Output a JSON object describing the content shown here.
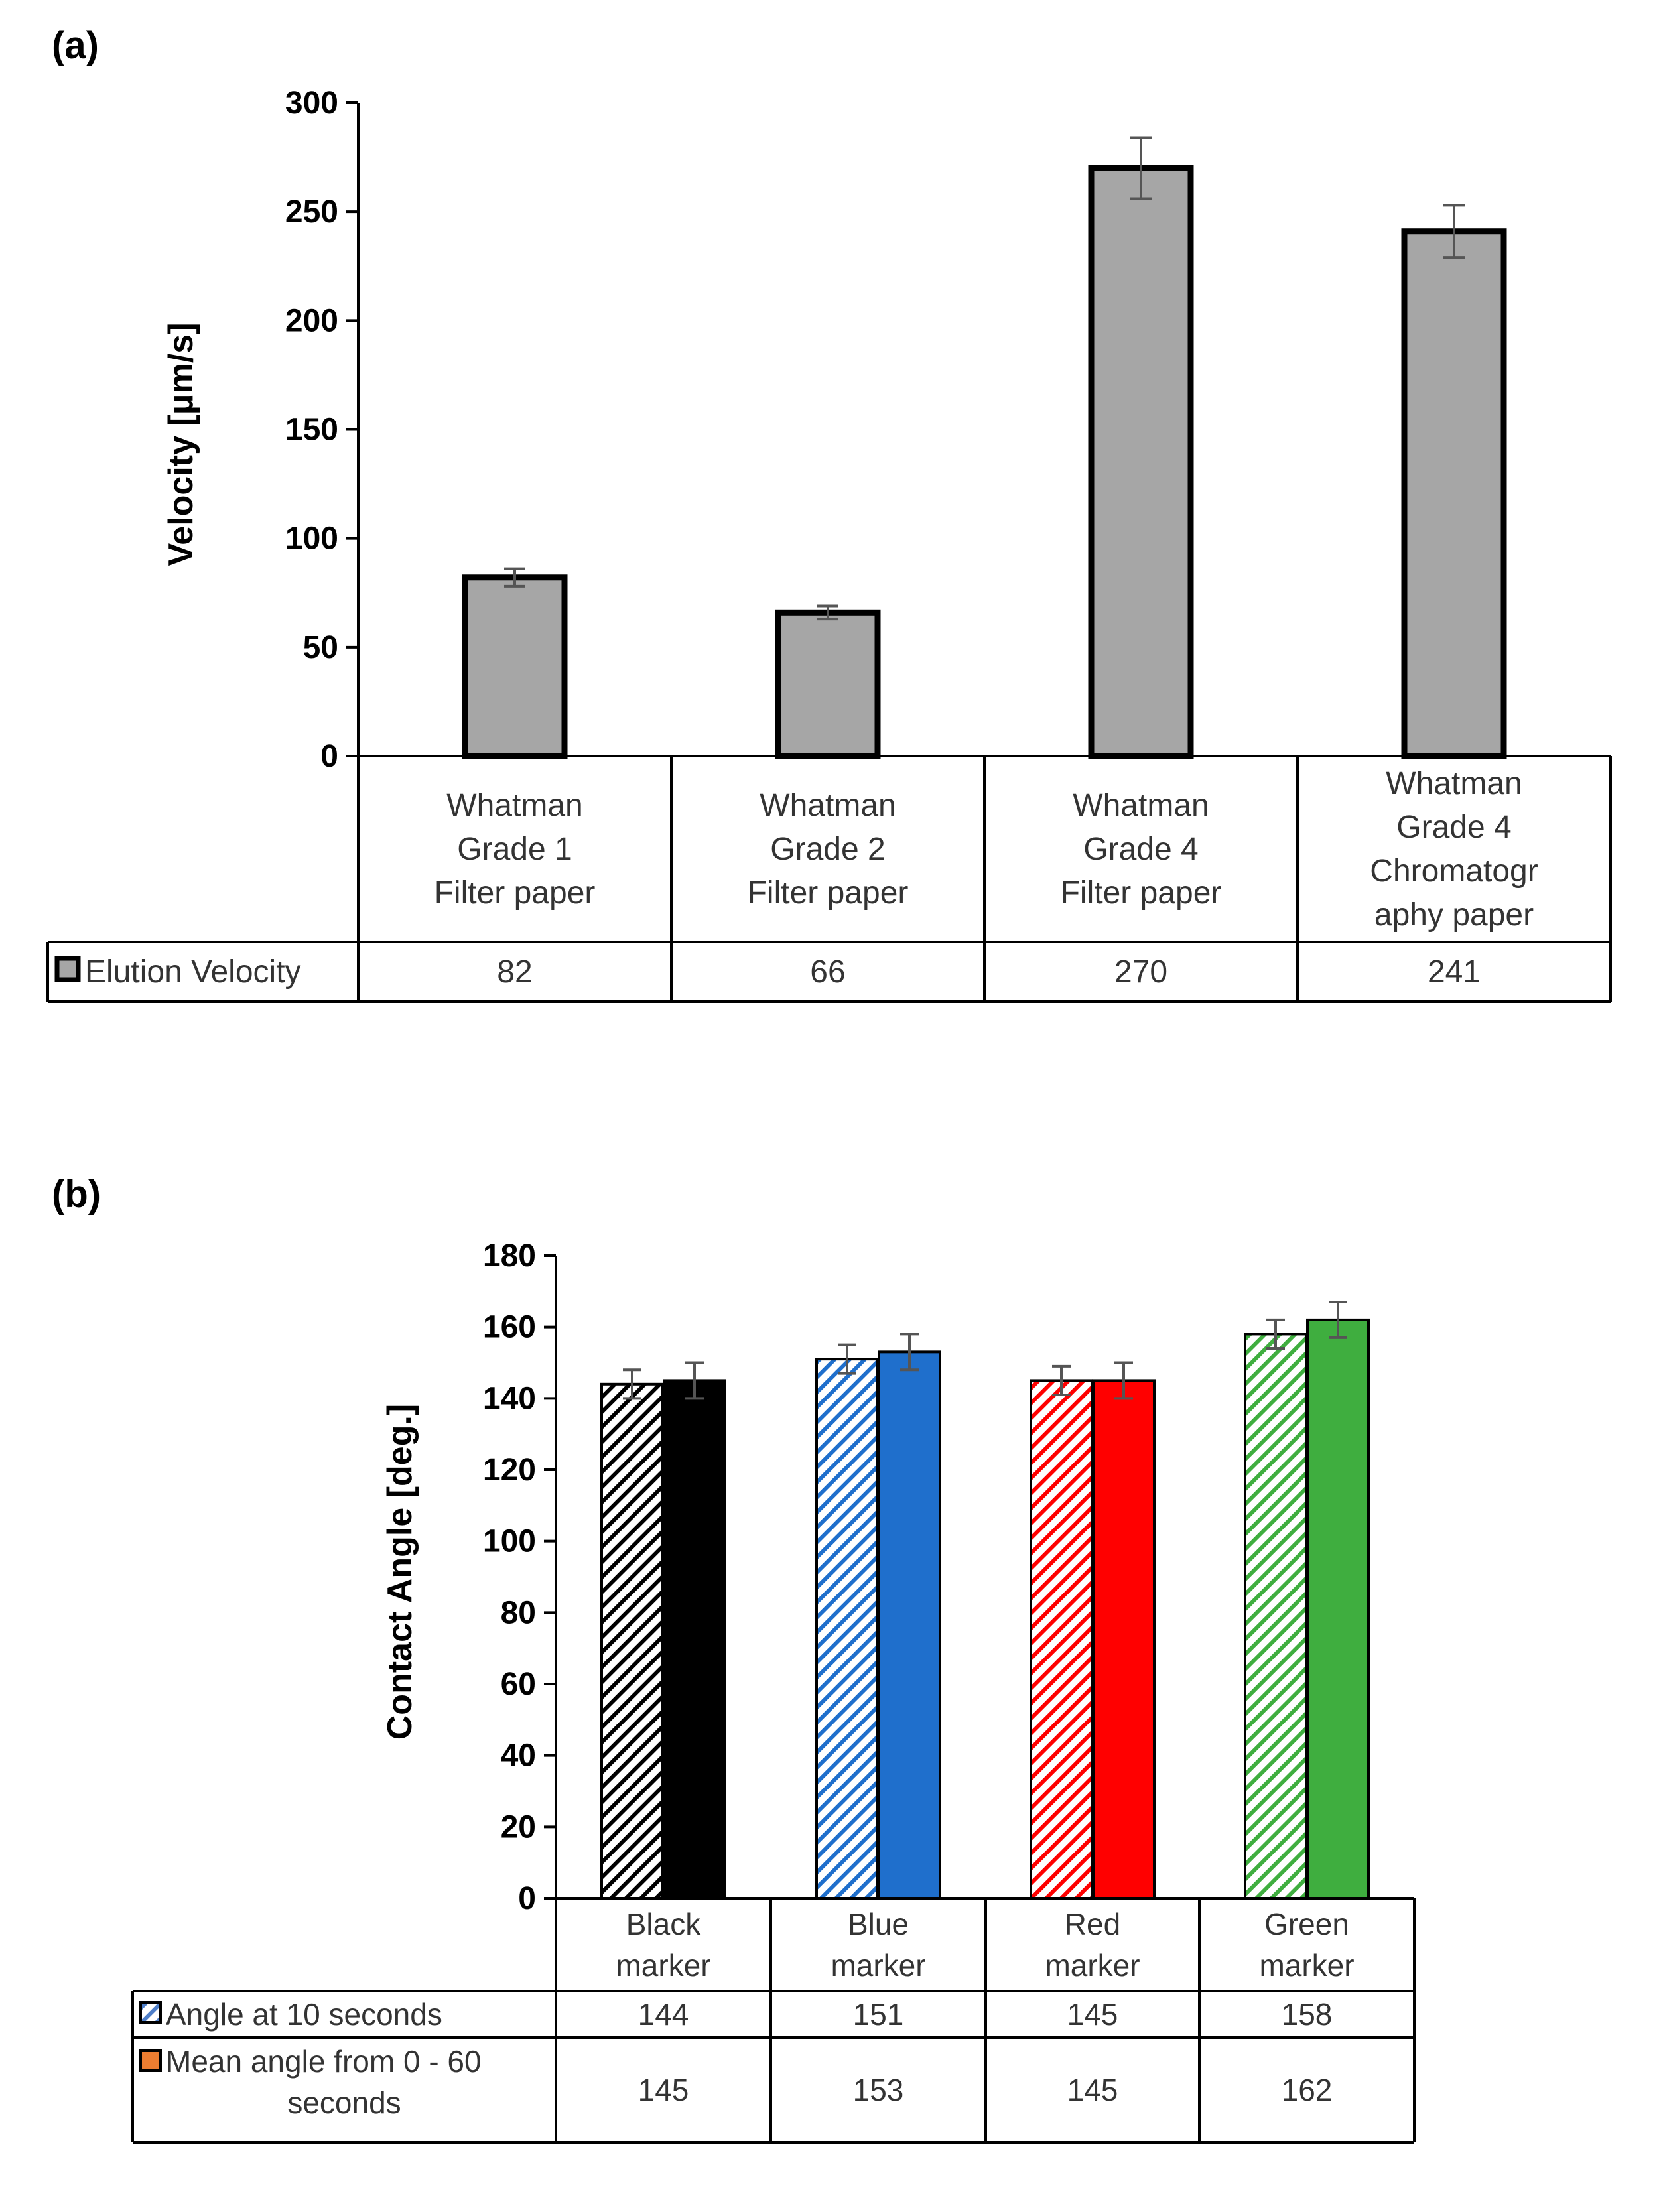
{
  "panels": [
    {
      "label": "(a)",
      "chart_data": {
        "type": "bar",
        "title": "",
        "ylabel": "Velocity [μm/s]",
        "xlabel": "",
        "ylim": [
          0,
          300
        ],
        "yticks": [
          0,
          50,
          100,
          150,
          200,
          250,
          300
        ],
        "categories": [
          [
            "Whatman",
            "Grade 1",
            "Filter paper"
          ],
          [
            "Whatman",
            "Grade 2",
            "Filter paper"
          ],
          [
            "Whatman",
            "Grade 4",
            "Filter paper"
          ],
          [
            "Whatman",
            "Grade 4",
            "Chromatogr",
            "aphy paper"
          ]
        ],
        "series": [
          {
            "name": "Elution Velocity",
            "values": [
              82,
              66,
              270,
              241
            ],
            "errors": [
              4,
              3,
              14,
              12
            ],
            "color": "#a6a6a6",
            "hatched": false
          }
        ],
        "data_table": true
      }
    },
    {
      "label": "(b)",
      "chart_data": {
        "type": "bar",
        "title": "",
        "ylabel": "Contact Angle [deg.]",
        "xlabel": "",
        "ylim": [
          0,
          180
        ],
        "yticks": [
          0,
          20,
          40,
          60,
          80,
          100,
          120,
          140,
          160,
          180
        ],
        "categories": [
          [
            "Black",
            "marker"
          ],
          [
            "Blue",
            "marker"
          ],
          [
            "Red",
            "marker"
          ],
          [
            "Green",
            "marker"
          ]
        ],
        "series": [
          {
            "name": "Angle at 10 seconds",
            "values": [
              144,
              151,
              145,
              158
            ],
            "errors": [
              4,
              4,
              4,
              4
            ],
            "hatched": true,
            "legend_color": "#4f7fc9"
          },
          {
            "name": "Mean angle from 0 - 60 seconds",
            "name_lines": [
              "Mean angle from 0 - 60",
              "seconds"
            ],
            "values": [
              145,
              153,
              145,
              162
            ],
            "errors": [
              5,
              5,
              5,
              5
            ],
            "hatched": false,
            "legend_color": "#ed7d31"
          }
        ],
        "category_colors": [
          "#000000",
          "#1f6fcc",
          "#ff0000",
          "#3fae3f"
        ],
        "data_table": true
      }
    }
  ]
}
